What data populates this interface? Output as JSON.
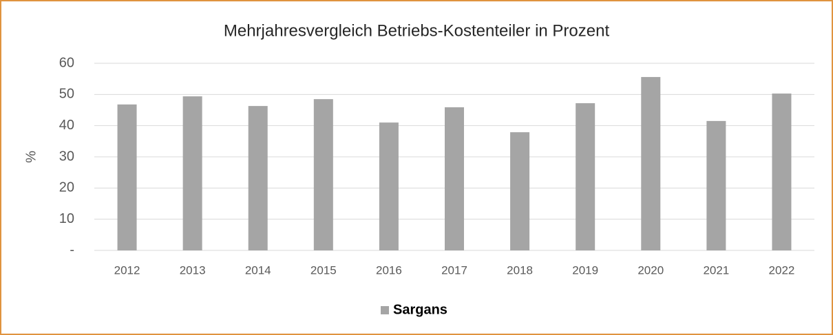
{
  "chart_data": {
    "type": "bar",
    "title": "Mehrjahresvergleich Betriebs-Kostenteiler in Prozent",
    "y_label": "%",
    "categories": [
      "2012",
      "2013",
      "2014",
      "2015",
      "2016",
      "2017",
      "2018",
      "2019",
      "2020",
      "2021",
      "2022"
    ],
    "series": [
      {
        "name": "Sargans",
        "color": "#a5a5a5",
        "values": [
          46.8,
          49.4,
          46.3,
          48.5,
          41.0,
          45.9,
          37.9,
          47.2,
          55.6,
          41.5,
          50.3
        ]
      }
    ],
    "ylim": [
      0,
      60
    ],
    "yticks": [
      {
        "value": 0,
        "label": "-"
      },
      10,
      20,
      30,
      40,
      50,
      60
    ],
    "grid": true,
    "legend": "bottom"
  }
}
